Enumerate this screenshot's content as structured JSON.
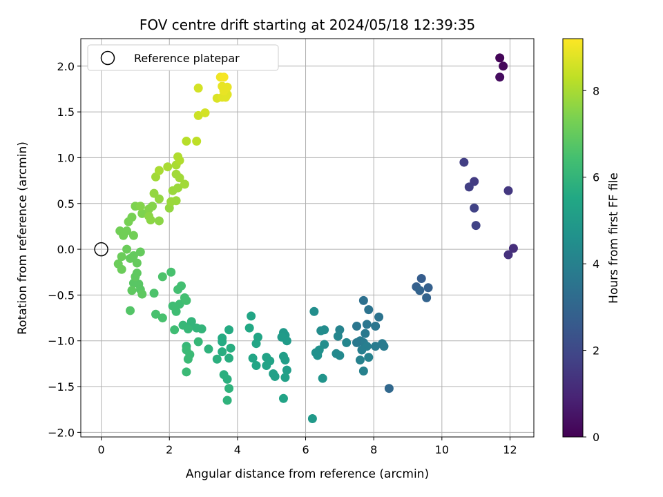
{
  "chart_data": {
    "type": "scatter",
    "title": "FOV centre drift starting at 2024/05/18 12:39:35",
    "xlabel": "Angular distance from reference (arcmin)",
    "ylabel": "Rotation from reference (arcmin)",
    "colorbar_label": "Hours from first FF file",
    "xlim": [
      -0.6,
      12.7
    ],
    "ylim": [
      -2.05,
      2.3
    ],
    "x_ticks": [
      0,
      2,
      4,
      6,
      8,
      10,
      12
    ],
    "x_tick_labels": [
      "0",
      "2",
      "4",
      "6",
      "8",
      "10",
      "12"
    ],
    "y_ticks": [
      -2.0,
      -1.5,
      -1.0,
      -0.5,
      0.0,
      0.5,
      1.0,
      1.5,
      2.0
    ],
    "y_tick_labels": [
      "−2.0",
      "−1.5",
      "−1.0",
      "−0.5",
      "0.0",
      "0.5",
      "1.0",
      "1.5",
      "2.0"
    ],
    "colorbar_range": [
      0,
      9.2
    ],
    "colorbar_ticks": [
      0,
      2,
      4,
      6,
      8
    ],
    "colorbar_tick_labels": [
      "0",
      "2",
      "4",
      "6",
      "8"
    ],
    "colormap": "viridis",
    "grid": true,
    "legend": {
      "placement": "top-left",
      "label": "Reference platepar",
      "marker": "open-circle"
    },
    "reference_point": {
      "x": 0,
      "y": 0
    },
    "points": [
      {
        "x": 11.7,
        "y": 2.09,
        "c": 0.1
      },
      {
        "x": 11.8,
        "y": 2.0,
        "c": 0.2
      },
      {
        "x": 11.7,
        "y": 1.88,
        "c": 0.3
      },
      {
        "x": 12.1,
        "y": 0.01,
        "c": 1.2
      },
      {
        "x": 11.95,
        "y": -0.06,
        "c": 1.3
      },
      {
        "x": 11.95,
        "y": 0.64,
        "c": 1.5
      },
      {
        "x": 10.65,
        "y": 0.95,
        "c": 1.7
      },
      {
        "x": 10.95,
        "y": 0.74,
        "c": 1.6
      },
      {
        "x": 10.8,
        "y": 0.68,
        "c": 1.7
      },
      {
        "x": 10.95,
        "y": 0.45,
        "c": 1.8
      },
      {
        "x": 11.0,
        "y": 0.26,
        "c": 1.8
      },
      {
        "x": 9.4,
        "y": -0.32,
        "c": 2.7
      },
      {
        "x": 9.25,
        "y": -0.41,
        "c": 2.8
      },
      {
        "x": 9.35,
        "y": -0.45,
        "c": 2.9
      },
      {
        "x": 9.6,
        "y": -0.42,
        "c": 2.8
      },
      {
        "x": 9.55,
        "y": -0.53,
        "c": 2.9
      },
      {
        "x": 8.45,
        "y": -1.52,
        "c": 3.1
      },
      {
        "x": 7.7,
        "y": -0.56,
        "c": 3.4
      },
      {
        "x": 7.85,
        "y": -0.66,
        "c": 3.5
      },
      {
        "x": 8.15,
        "y": -0.74,
        "c": 3.5
      },
      {
        "x": 7.5,
        "y": -0.84,
        "c": 3.6
      },
      {
        "x": 7.8,
        "y": -0.82,
        "c": 3.6
      },
      {
        "x": 8.05,
        "y": -0.84,
        "c": 3.6
      },
      {
        "x": 7.75,
        "y": -0.92,
        "c": 3.7
      },
      {
        "x": 7.6,
        "y": -1.0,
        "c": 3.8
      },
      {
        "x": 7.7,
        "y": -1.02,
        "c": 3.8
      },
      {
        "x": 7.5,
        "y": -1.02,
        "c": 3.7
      },
      {
        "x": 7.8,
        "y": -1.06,
        "c": 3.9
      },
      {
        "x": 7.65,
        "y": -1.1,
        "c": 3.9
      },
      {
        "x": 8.05,
        "y": -1.06,
        "c": 3.8
      },
      {
        "x": 8.25,
        "y": -1.03,
        "c": 3.8
      },
      {
        "x": 8.3,
        "y": -1.06,
        "c": 3.8
      },
      {
        "x": 7.6,
        "y": -1.21,
        "c": 4.0
      },
      {
        "x": 7.85,
        "y": -1.18,
        "c": 4.0
      },
      {
        "x": 7.7,
        "y": -1.33,
        "c": 4.0
      },
      {
        "x": 7.0,
        "y": -0.88,
        "c": 4.1
      },
      {
        "x": 6.95,
        "y": -0.95,
        "c": 4.2
      },
      {
        "x": 7.2,
        "y": -1.02,
        "c": 4.2
      },
      {
        "x": 6.9,
        "y": -1.14,
        "c": 4.3
      },
      {
        "x": 7.0,
        "y": -1.16,
        "c": 4.3
      },
      {
        "x": 6.55,
        "y": -0.88,
        "c": 4.4
      },
      {
        "x": 6.45,
        "y": -0.89,
        "c": 4.4
      },
      {
        "x": 6.55,
        "y": -1.04,
        "c": 4.5
      },
      {
        "x": 6.25,
        "y": -0.68,
        "c": 4.5
      },
      {
        "x": 6.4,
        "y": -1.1,
        "c": 4.6
      },
      {
        "x": 6.3,
        "y": -1.13,
        "c": 4.6
      },
      {
        "x": 6.35,
        "y": -1.16,
        "c": 4.6
      },
      {
        "x": 6.5,
        "y": -1.41,
        "c": 4.7
      },
      {
        "x": 6.2,
        "y": -1.85,
        "c": 4.9
      },
      {
        "x": 5.35,
        "y": -0.91,
        "c": 4.9
      },
      {
        "x": 5.4,
        "y": -0.94,
        "c": 4.9
      },
      {
        "x": 5.3,
        "y": -0.96,
        "c": 5.0
      },
      {
        "x": 5.45,
        "y": -1.0,
        "c": 5.0
      },
      {
        "x": 5.35,
        "y": -1.17,
        "c": 5.1
      },
      {
        "x": 5.4,
        "y": -1.21,
        "c": 5.1
      },
      {
        "x": 5.45,
        "y": -1.32,
        "c": 5.1
      },
      {
        "x": 5.4,
        "y": -1.4,
        "c": 5.2
      },
      {
        "x": 5.05,
        "y": -1.36,
        "c": 5.2
      },
      {
        "x": 5.1,
        "y": -1.39,
        "c": 5.2
      },
      {
        "x": 5.35,
        "y": -1.63,
        "c": 5.3
      },
      {
        "x": 4.85,
        "y": -1.18,
        "c": 5.3
      },
      {
        "x": 4.95,
        "y": -1.22,
        "c": 5.3
      },
      {
        "x": 4.85,
        "y": -1.27,
        "c": 5.3
      },
      {
        "x": 4.6,
        "y": -0.96,
        "c": 5.4
      },
      {
        "x": 4.55,
        "y": -1.03,
        "c": 5.4
      },
      {
        "x": 4.45,
        "y": -1.19,
        "c": 5.4
      },
      {
        "x": 4.55,
        "y": -1.27,
        "c": 5.4
      },
      {
        "x": 4.4,
        "y": -0.73,
        "c": 5.4
      },
      {
        "x": 4.35,
        "y": -0.86,
        "c": 5.5
      },
      {
        "x": 3.55,
        "y": -0.97,
        "c": 5.6
      },
      {
        "x": 3.55,
        "y": -1.01,
        "c": 5.6
      },
      {
        "x": 3.75,
        "y": -0.88,
        "c": 5.6
      },
      {
        "x": 3.8,
        "y": -1.08,
        "c": 5.7
      },
      {
        "x": 3.55,
        "y": -1.12,
        "c": 5.7
      },
      {
        "x": 3.75,
        "y": -1.19,
        "c": 5.7
      },
      {
        "x": 3.4,
        "y": -1.2,
        "c": 5.8
      },
      {
        "x": 3.6,
        "y": -1.37,
        "c": 5.8
      },
      {
        "x": 3.7,
        "y": -1.42,
        "c": 5.8
      },
      {
        "x": 3.75,
        "y": -1.52,
        "c": 5.9
      },
      {
        "x": 3.7,
        "y": -1.65,
        "c": 5.9
      },
      {
        "x": 3.15,
        "y": -1.09,
        "c": 5.9
      },
      {
        "x": 2.8,
        "y": -0.86,
        "c": 6.0
      },
      {
        "x": 2.95,
        "y": -0.87,
        "c": 6.0
      },
      {
        "x": 2.65,
        "y": -0.79,
        "c": 6.0
      },
      {
        "x": 2.6,
        "y": -0.84,
        "c": 6.0
      },
      {
        "x": 2.4,
        "y": -0.83,
        "c": 6.1
      },
      {
        "x": 2.55,
        "y": -0.87,
        "c": 6.1
      },
      {
        "x": 2.85,
        "y": -1.01,
        "c": 6.1
      },
      {
        "x": 2.5,
        "y": -1.06,
        "c": 6.1
      },
      {
        "x": 2.5,
        "y": -1.1,
        "c": 6.2
      },
      {
        "x": 2.6,
        "y": -1.15,
        "c": 6.2
      },
      {
        "x": 2.55,
        "y": -1.2,
        "c": 6.2
      },
      {
        "x": 2.5,
        "y": -1.34,
        "c": 6.2
      },
      {
        "x": 2.15,
        "y": -0.88,
        "c": 6.3
      },
      {
        "x": 2.2,
        "y": -0.68,
        "c": 6.3
      },
      {
        "x": 2.3,
        "y": -0.6,
        "c": 6.3
      },
      {
        "x": 2.1,
        "y": -0.62,
        "c": 6.3
      },
      {
        "x": 2.45,
        "y": -0.53,
        "c": 6.4
      },
      {
        "x": 2.5,
        "y": -0.56,
        "c": 6.4
      },
      {
        "x": 2.25,
        "y": -0.44,
        "c": 6.4
      },
      {
        "x": 2.35,
        "y": -0.4,
        "c": 6.4
      },
      {
        "x": 2.05,
        "y": -0.25,
        "c": 6.5
      },
      {
        "x": 1.8,
        "y": -0.75,
        "c": 6.5
      },
      {
        "x": 1.6,
        "y": -0.71,
        "c": 6.5
      },
      {
        "x": 1.55,
        "y": -0.48,
        "c": 6.6
      },
      {
        "x": 1.8,
        "y": -0.3,
        "c": 6.6
      },
      {
        "x": 0.85,
        "y": -0.67,
        "c": 6.7
      },
      {
        "x": 1.1,
        "y": -0.38,
        "c": 6.8
      },
      {
        "x": 1.15,
        "y": -0.44,
        "c": 6.8
      },
      {
        "x": 0.95,
        "y": -0.37,
        "c": 6.8
      },
      {
        "x": 0.9,
        "y": -0.45,
        "c": 6.9
      },
      {
        "x": 1.2,
        "y": -0.49,
        "c": 6.9
      },
      {
        "x": 1.05,
        "y": -0.26,
        "c": 6.9
      },
      {
        "x": 1.0,
        "y": -0.3,
        "c": 6.9
      },
      {
        "x": 1.05,
        "y": -0.15,
        "c": 7.0
      },
      {
        "x": 0.85,
        "y": -0.1,
        "c": 7.0
      },
      {
        "x": 0.95,
        "y": -0.07,
        "c": 7.0
      },
      {
        "x": 1.15,
        "y": -0.03,
        "c": 7.0
      },
      {
        "x": 0.75,
        "y": 0.0,
        "c": 7.1
      },
      {
        "x": 0.6,
        "y": -0.08,
        "c": 7.1
      },
      {
        "x": 0.5,
        "y": -0.16,
        "c": 7.1
      },
      {
        "x": 0.6,
        "y": -0.22,
        "c": 7.1
      },
      {
        "x": 0.55,
        "y": 0.2,
        "c": 7.2
      },
      {
        "x": 0.65,
        "y": 0.15,
        "c": 7.2
      },
      {
        "x": 0.75,
        "y": 0.2,
        "c": 7.2
      },
      {
        "x": 0.95,
        "y": 0.15,
        "c": 7.2
      },
      {
        "x": 0.8,
        "y": 0.3,
        "c": 7.3
      },
      {
        "x": 0.9,
        "y": 0.35,
        "c": 7.3
      },
      {
        "x": 1.0,
        "y": 0.47,
        "c": 7.4
      },
      {
        "x": 1.2,
        "y": 0.39,
        "c": 7.4
      },
      {
        "x": 1.15,
        "y": 0.47,
        "c": 7.5
      },
      {
        "x": 1.4,
        "y": 0.44,
        "c": 7.5
      },
      {
        "x": 1.5,
        "y": 0.47,
        "c": 7.5
      },
      {
        "x": 1.4,
        "y": 0.36,
        "c": 7.6
      },
      {
        "x": 1.45,
        "y": 0.32,
        "c": 7.6
      },
      {
        "x": 1.7,
        "y": 0.31,
        "c": 7.6
      },
      {
        "x": 1.55,
        "y": 0.61,
        "c": 7.7
      },
      {
        "x": 1.7,
        "y": 0.55,
        "c": 7.7
      },
      {
        "x": 2.0,
        "y": 0.45,
        "c": 7.7
      },
      {
        "x": 2.05,
        "y": 0.52,
        "c": 7.8
      },
      {
        "x": 2.2,
        "y": 0.53,
        "c": 7.8
      },
      {
        "x": 2.1,
        "y": 0.64,
        "c": 7.8
      },
      {
        "x": 2.25,
        "y": 0.67,
        "c": 7.8
      },
      {
        "x": 2.45,
        "y": 0.71,
        "c": 7.9
      },
      {
        "x": 2.3,
        "y": 0.78,
        "c": 7.9
      },
      {
        "x": 2.2,
        "y": 0.82,
        "c": 7.9
      },
      {
        "x": 1.6,
        "y": 0.79,
        "c": 7.9
      },
      {
        "x": 1.7,
        "y": 0.86,
        "c": 8.0
      },
      {
        "x": 1.95,
        "y": 0.9,
        "c": 8.0
      },
      {
        "x": 2.2,
        "y": 0.92,
        "c": 8.0
      },
      {
        "x": 2.3,
        "y": 0.97,
        "c": 8.1
      },
      {
        "x": 2.25,
        "y": 1.01,
        "c": 8.1
      },
      {
        "x": 2.5,
        "y": 1.18,
        "c": 8.2
      },
      {
        "x": 2.8,
        "y": 1.18,
        "c": 8.3
      },
      {
        "x": 2.85,
        "y": 1.46,
        "c": 8.5
      },
      {
        "x": 3.05,
        "y": 1.49,
        "c": 8.6
      },
      {
        "x": 3.4,
        "y": 1.65,
        "c": 8.7
      },
      {
        "x": 3.55,
        "y": 1.66,
        "c": 8.8
      },
      {
        "x": 3.65,
        "y": 1.66,
        "c": 8.8
      },
      {
        "x": 3.7,
        "y": 1.69,
        "c": 8.8
      },
      {
        "x": 3.6,
        "y": 1.73,
        "c": 8.9
      },
      {
        "x": 3.55,
        "y": 1.78,
        "c": 8.9
      },
      {
        "x": 3.7,
        "y": 1.77,
        "c": 8.9
      },
      {
        "x": 3.5,
        "y": 1.88,
        "c": 9.0
      },
      {
        "x": 3.6,
        "y": 1.88,
        "c": 9.1
      },
      {
        "x": 2.85,
        "y": 1.76,
        "c": 8.6
      }
    ]
  }
}
